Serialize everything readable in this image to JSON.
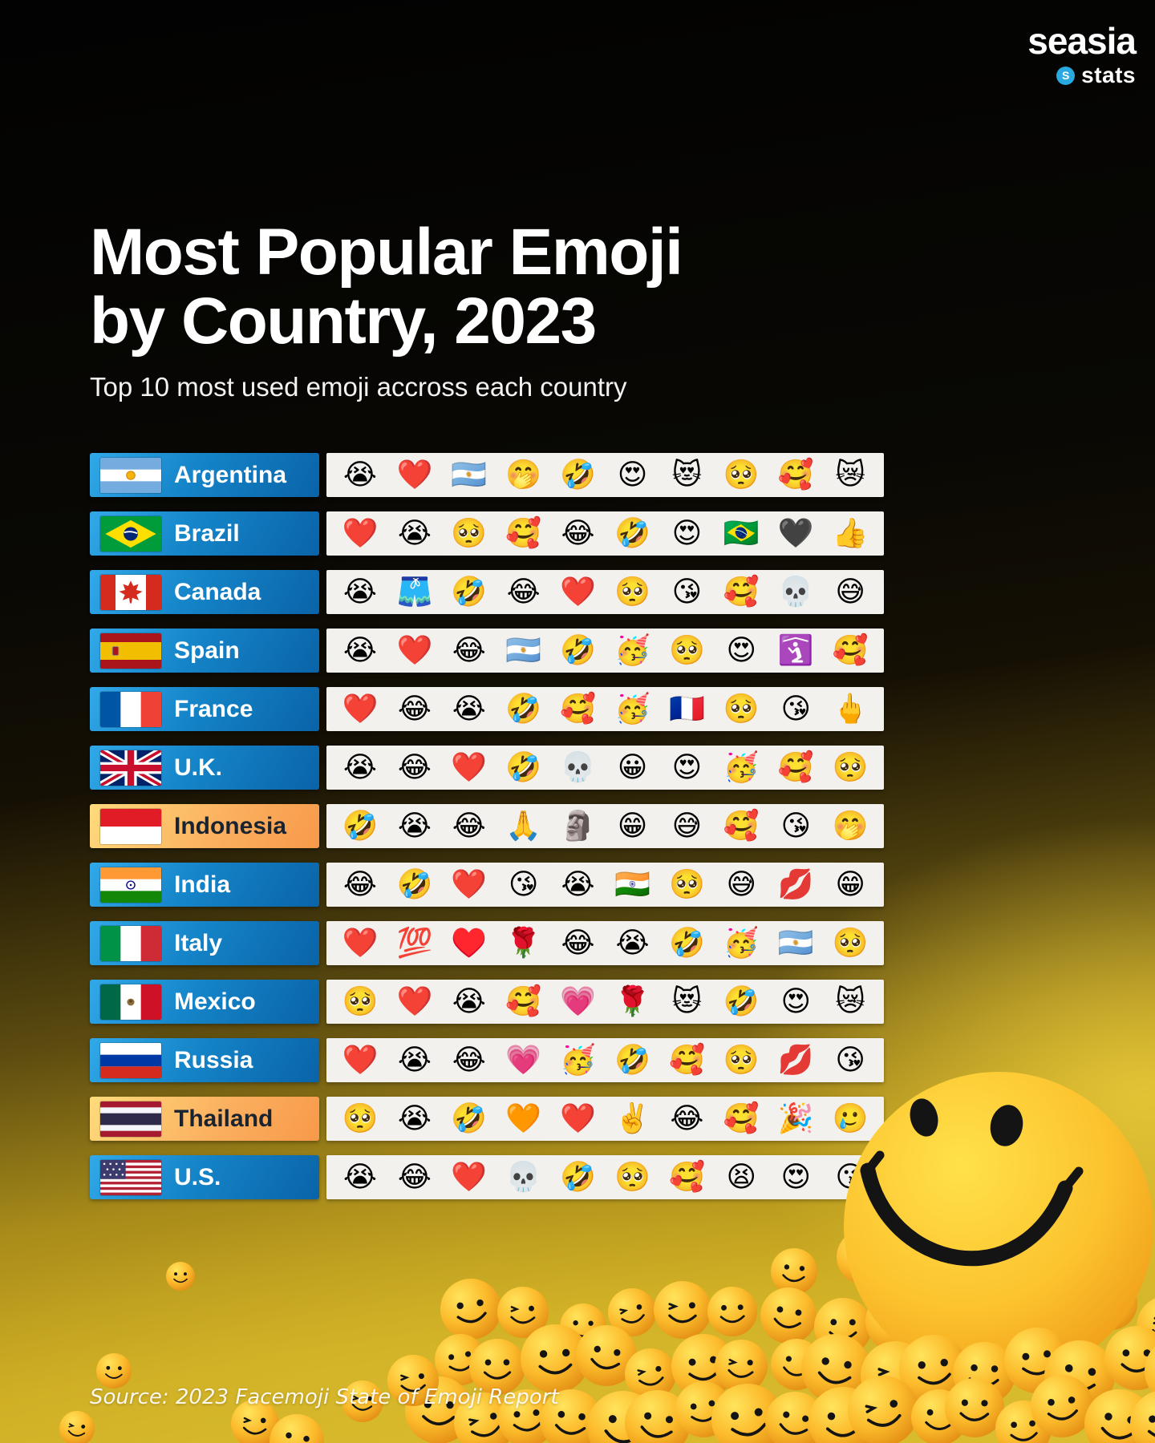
{
  "logo": {
    "brand": "seasia",
    "sub": "stats",
    "dot_letter": "S"
  },
  "title": {
    "line1": "Most Popular Emoji",
    "line2": "by Country, 2023"
  },
  "subtitle": "Top 10 most used emoji accross each country",
  "source": "Source: 2023 Facemoji State of Emoji Report",
  "colors": {
    "label_blue_start": "#31a9e9",
    "label_blue_end": "#0a63a8",
    "label_orange_start": "#ffdb7c",
    "label_orange_end": "#f7994a",
    "emoji_bar_bg": "#f2f1ee",
    "logo_dot_blue": "#2aa9e1",
    "background_gold": "#d4b326",
    "background_dark": "#060604"
  },
  "chart_data": {
    "type": "table",
    "title": "Most Popular Emoji by Country, 2023",
    "subtitle": "Top 10 most used emoji accross each country",
    "columns": [
      "Country",
      "Top 10 emojis ranked 1-10"
    ],
    "rows": [
      {
        "country": "Argentina",
        "flag": "argentina",
        "label_theme": "blue",
        "emojis": [
          "😭",
          "❤️",
          "🇦🇷",
          "🤭",
          "🤣",
          "😍",
          "😻",
          "🥺",
          "🥰",
          "😿"
        ]
      },
      {
        "country": "Brazil",
        "flag": "brazil",
        "label_theme": "blue",
        "emojis": [
          "❤️",
          "😭",
          "🥺",
          "🥰",
          "😂",
          "🤣",
          "😍",
          "🇧🇷",
          "🖤",
          "👍"
        ]
      },
      {
        "country": "Canada",
        "flag": "canada",
        "label_theme": "blue",
        "emojis": [
          "😭",
          "🩳",
          "🤣",
          "😂",
          "❤️",
          "🥺",
          "😘",
          "🥰",
          "💀",
          "😅"
        ]
      },
      {
        "country": "Spain",
        "flag": "spain",
        "label_theme": "blue",
        "emojis": [
          "😭",
          "❤️",
          "😂",
          "🇦🇷",
          "🤣",
          "🥳",
          "🥺",
          "😍",
          "🛐",
          "🥰"
        ]
      },
      {
        "country": "France",
        "flag": "france",
        "label_theme": "blue",
        "emojis": [
          "❤️",
          "😂",
          "😭",
          "🤣",
          "🥰",
          "🥳",
          "🇫🇷",
          "🥺",
          "😘",
          "🖕"
        ]
      },
      {
        "country": "U.K.",
        "flag": "uk",
        "label_theme": "blue",
        "emojis": [
          "😭",
          "😂",
          "❤️",
          "🤣",
          "💀",
          "😀",
          "😍",
          "🥳",
          "🥰",
          "🥺"
        ]
      },
      {
        "country": "Indonesia",
        "flag": "indonesia",
        "label_theme": "orange",
        "emojis": [
          "🤣",
          "😭",
          "😂",
          "🙏",
          "🗿",
          "😁",
          "😅",
          "🥰",
          "😘",
          "🤭"
        ]
      },
      {
        "country": "India",
        "flag": "india",
        "label_theme": "blue",
        "emojis": [
          "😂",
          "🤣",
          "❤️",
          "😘",
          "😭",
          "🇮🇳",
          "🥺",
          "😅",
          "💋",
          "😁"
        ]
      },
      {
        "country": "Italy",
        "flag": "italy",
        "label_theme": "blue",
        "emojis": [
          "❤️",
          "💯",
          "♥️",
          "🌹",
          "😂",
          "😭",
          "🤣",
          "🥳",
          "🇦🇷",
          "🥺"
        ]
      },
      {
        "country": "Mexico",
        "flag": "mexico",
        "label_theme": "blue",
        "emojis": [
          "🥺",
          "❤️",
          "😭",
          "🥰",
          "💗",
          "🌹",
          "😻",
          "🤣",
          "😍",
          "😿"
        ]
      },
      {
        "country": "Russia",
        "flag": "russia",
        "label_theme": "blue",
        "emojis": [
          "❤️",
          "😭",
          "😂",
          "💗",
          "🥳",
          "🤣",
          "🥰",
          "🥺",
          "💋",
          "😘"
        ]
      },
      {
        "country": "Thailand",
        "flag": "thailand",
        "label_theme": "orange",
        "emojis": [
          "🥺",
          "😭",
          "🤣",
          "🧡",
          "❤️",
          "✌️",
          "😂",
          "🥰",
          "🎉",
          "🥲"
        ]
      },
      {
        "country": "U.S.",
        "flag": "us",
        "label_theme": "blue",
        "emojis": [
          "😭",
          "😂",
          "❤️",
          "💀",
          "🤣",
          "🥺",
          "🥰",
          "😫",
          "😍",
          "😘"
        ]
      }
    ]
  }
}
